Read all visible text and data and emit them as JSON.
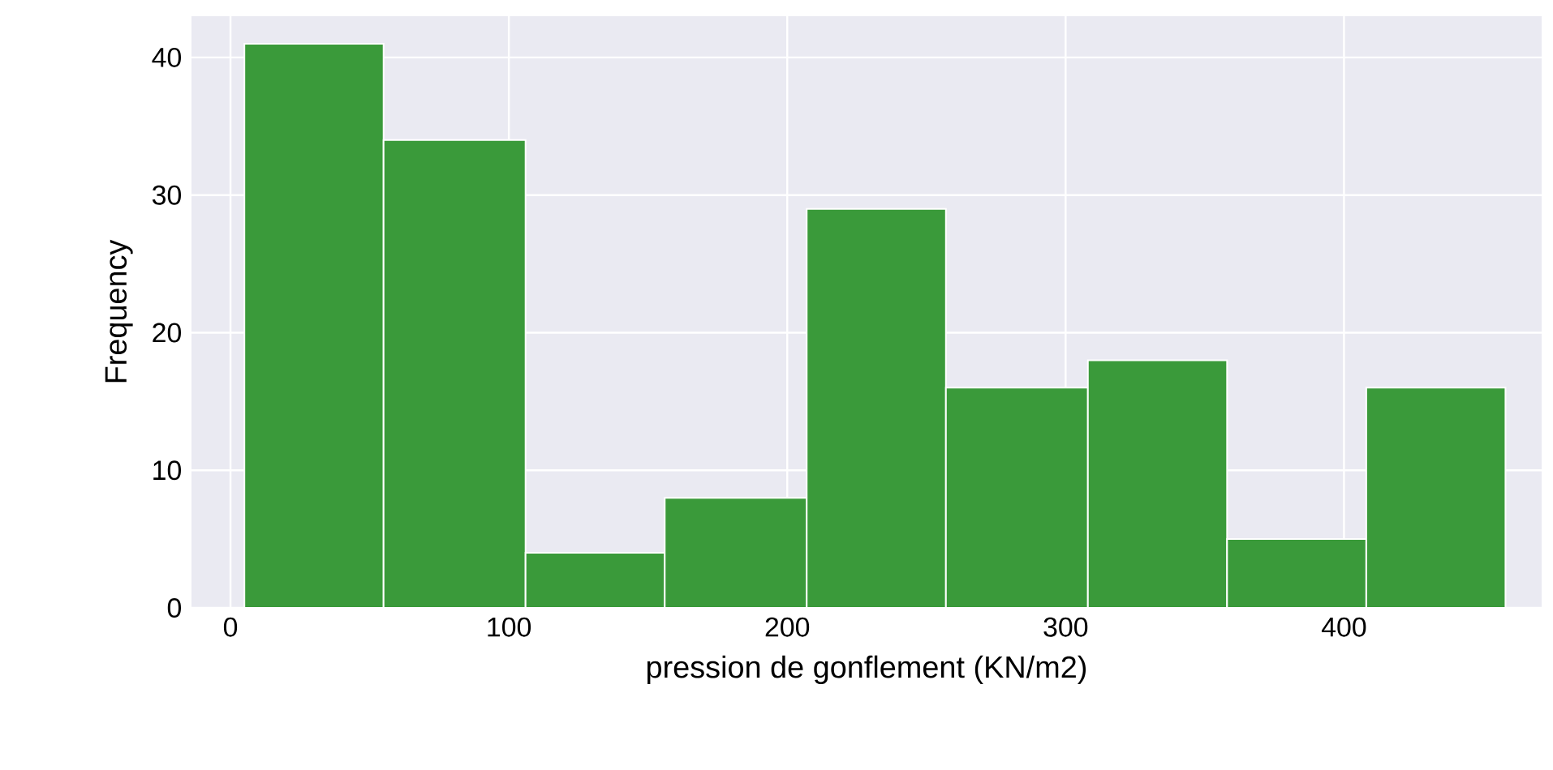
{
  "chart_data": {
    "type": "histogram",
    "xlabel": "pression de gonflement (KN/m2)",
    "ylabel": "Frequency",
    "bins": [
      5,
      55,
      106,
      156,
      207,
      257,
      308,
      358,
      408,
      458
    ],
    "values": [
      41,
      34,
      4,
      8,
      29,
      16,
      18,
      5,
      16
    ],
    "color": "#3a9a3a",
    "xlim": [
      -14,
      471
    ],
    "ylim": [
      0,
      43
    ],
    "xticks": [
      0,
      100,
      200,
      300,
      400
    ],
    "yticks": [
      0,
      10,
      20,
      30,
      40
    ],
    "grid": true
  }
}
